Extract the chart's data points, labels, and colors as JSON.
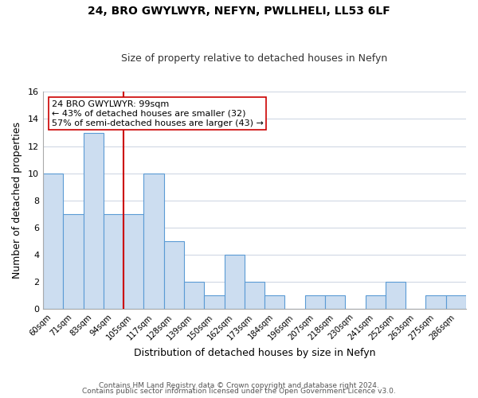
{
  "title": "24, BRO GWYLWYR, NEFYN, PWLLHELI, LL53 6LF",
  "subtitle": "Size of property relative to detached houses in Nefyn",
  "xlabel": "Distribution of detached houses by size in Nefyn",
  "ylabel": "Number of detached properties",
  "bin_labels": [
    "60sqm",
    "71sqm",
    "83sqm",
    "94sqm",
    "105sqm",
    "117sqm",
    "128sqm",
    "139sqm",
    "150sqm",
    "162sqm",
    "173sqm",
    "184sqm",
    "196sqm",
    "207sqm",
    "218sqm",
    "230sqm",
    "241sqm",
    "252sqm",
    "263sqm",
    "275sqm",
    "286sqm"
  ],
  "bar_heights": [
    10,
    7,
    13,
    7,
    7,
    10,
    5,
    2,
    1,
    4,
    2,
    1,
    0,
    1,
    1,
    0,
    1,
    2,
    0,
    1,
    1
  ],
  "bar_color": "#ccddf0",
  "bar_edge_color": "#5b9bd5",
  "property_line_color": "#cc0000",
  "annotation_text": "24 BRO GWYLWYR: 99sqm\n← 43% of detached houses are smaller (32)\n57% of semi-detached houses are larger (43) →",
  "annotation_box_color": "#ffffff",
  "annotation_box_edge_color": "#cc0000",
  "ylim": [
    0,
    16
  ],
  "yticks": [
    0,
    2,
    4,
    6,
    8,
    10,
    12,
    14,
    16
  ],
  "footer_line1": "Contains HM Land Registry data © Crown copyright and database right 2024.",
  "footer_line2": "Contains public sector information licensed under the Open Government Licence v3.0.",
  "background_color": "#ffffff",
  "grid_color": "#d0d8e4",
  "line_x_index": 3.5
}
